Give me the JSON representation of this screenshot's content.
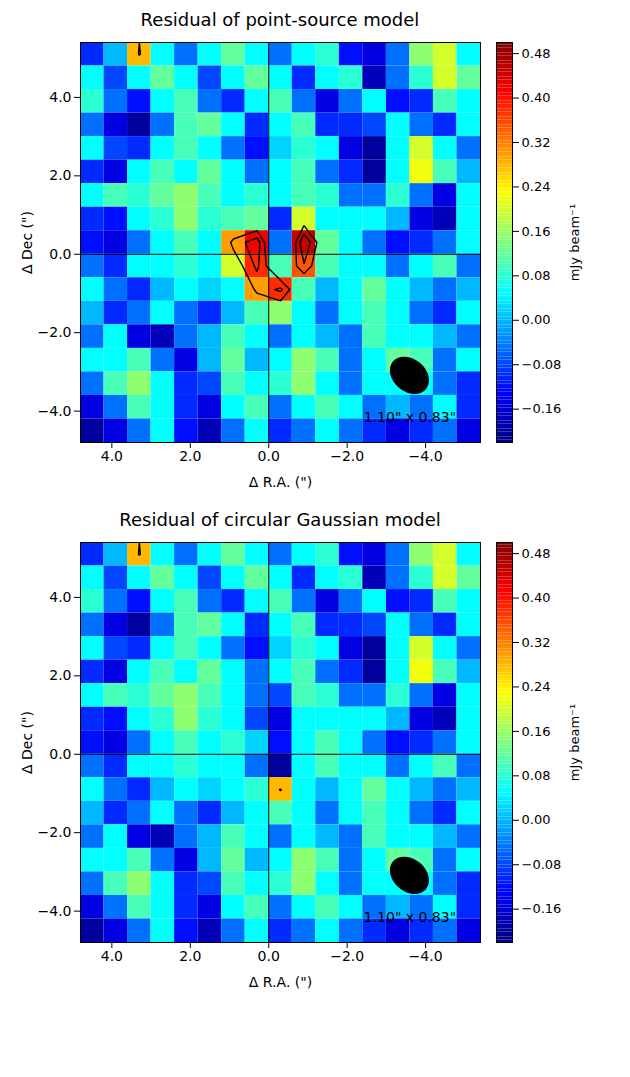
{
  "chart_data": [
    {
      "type": "heatmap",
      "title": "Residual of point-source model",
      "x_label": "Δ R.A. (\")",
      "y_label": "Δ Dec (\")",
      "xlim": [
        4.8,
        -5.4
      ],
      "ylim": [
        -4.8,
        5.4
      ],
      "xticks": [
        {
          "value": 4,
          "label": "4.0"
        },
        {
          "value": 2,
          "label": "2.0"
        },
        {
          "value": 0,
          "label": "0.0"
        },
        {
          "value": -2,
          "label": "−2.0"
        },
        {
          "value": -4,
          "label": "−4.0"
        }
      ],
      "yticks": [
        {
          "value": -4,
          "label": "−4.0"
        },
        {
          "value": -2,
          "label": "−2.0"
        },
        {
          "value": 0,
          "label": "0.0"
        },
        {
          "value": 2,
          "label": "2.0"
        },
        {
          "value": 4,
          "label": "4.0"
        }
      ],
      "x": [
        4.5,
        3.9,
        3.3,
        2.7,
        2.1,
        1.5,
        0.9,
        0.3,
        -0.3,
        -0.9,
        -1.5,
        -2.1,
        -2.7,
        -3.3,
        -3.9,
        -4.5,
        -5.1
      ],
      "y": [
        5.1,
        4.5,
        3.9,
        3.3,
        2.7,
        2.1,
        1.5,
        0.9,
        0.3,
        -0.3,
        -0.9,
        -1.5,
        -2.1,
        -2.7,
        -3.3,
        -3.9,
        -4.5
      ],
      "values": [
        [
          -0.1,
          0,
          0.28,
          0.05,
          -0.05,
          0.05,
          0.12,
          0.05,
          -0.05,
          0.05,
          0.08,
          -0.12,
          -0.15,
          -0.05,
          0.15,
          0.2,
          0.05
        ],
        [
          0.05,
          -0.08,
          0.05,
          0.12,
          0.05,
          -0.08,
          0.05,
          0.12,
          0.05,
          -0.1,
          0.05,
          0.08,
          -0.18,
          -0.05,
          0.08,
          0.2,
          0.12
        ],
        [
          0.08,
          -0.05,
          -0.12,
          0.05,
          0.1,
          -0.05,
          -0.1,
          0.05,
          0.1,
          -0.05,
          -0.15,
          -0.05,
          0.05,
          -0.12,
          -0.1,
          0.1,
          0.05
        ],
        [
          -0.05,
          -0.15,
          -0.2,
          -0.05,
          0.1,
          0.12,
          0.05,
          -0.1,
          0.05,
          0.1,
          -0.1,
          -0.1,
          -0.08,
          0.05,
          -0.05,
          -0.1,
          0.05
        ],
        [
          0.05,
          -0.08,
          -0.1,
          0.05,
          0.1,
          0.05,
          -0.05,
          -0.12,
          0.02,
          0.08,
          0.05,
          -0.15,
          -0.2,
          0.05,
          0.2,
          0.05,
          -0.05
        ],
        [
          -0.1,
          -0.15,
          0.05,
          0.1,
          0.05,
          0.12,
          0.05,
          -0.05,
          0.05,
          0.1,
          -0.05,
          -0.1,
          -0.2,
          0.05,
          0.22,
          0.1,
          0
        ],
        [
          0.05,
          0.1,
          0.08,
          0.12,
          0.15,
          0.1,
          0.05,
          0.08,
          0.05,
          0.1,
          0.08,
          -0.05,
          -0.05,
          0.08,
          -0.05,
          -0.15,
          0.05
        ],
        [
          -0.1,
          -0.12,
          0.05,
          0.08,
          0.15,
          0.08,
          0.1,
          0.12,
          -0.1,
          0.2,
          0.05,
          0.05,
          0.05,
          0,
          -0.15,
          -0.18,
          0.05
        ],
        [
          -0.12,
          -0.15,
          -0.05,
          0.05,
          0.1,
          0.05,
          0.3,
          0.42,
          -0.05,
          0.45,
          0.12,
          0.05,
          -0.05,
          -0.12,
          -0.1,
          -0.05,
          0.05
        ],
        [
          -0.05,
          -0.1,
          0.05,
          0.05,
          0.08,
          0.05,
          0.2,
          0.38,
          0.1,
          0.35,
          0.1,
          0.05,
          0.05,
          -0.05,
          0.05,
          0.1,
          -0.05
        ],
        [
          0.05,
          -0.05,
          -0.1,
          0,
          0.05,
          0.02,
          0.05,
          0.3,
          0.38,
          0.1,
          0,
          0.05,
          0.12,
          0.05,
          0,
          -0.05,
          0
        ],
        [
          0,
          -0.1,
          -0.05,
          0.05,
          -0.05,
          -0.1,
          0,
          0.1,
          0.15,
          0.05,
          -0.05,
          0.05,
          0.1,
          0.05,
          -0.05,
          -0.1,
          0.05
        ],
        [
          -0.05,
          0.05,
          -0.15,
          -0.18,
          -0.05,
          0,
          0.1,
          0.05,
          -0.05,
          0.05,
          0,
          -0.05,
          0.1,
          0.05,
          0.05,
          0,
          -0.05
        ],
        [
          0.05,
          0.05,
          0.1,
          -0.05,
          -0.15,
          0,
          0.12,
          0,
          0.05,
          0.15,
          0.1,
          -0.05,
          0.05,
          0.12,
          0.1,
          -0.05,
          0.05
        ],
        [
          -0.05,
          0.1,
          0.15,
          0.05,
          -0.1,
          -0.08,
          0.1,
          0.05,
          0.08,
          0.15,
          0.05,
          -0.05,
          0.05,
          0.05,
          0.05,
          -0.05,
          -0.1
        ],
        [
          -0.15,
          -0.05,
          0.1,
          0.05,
          -0.1,
          -0.15,
          0.05,
          0.1,
          -0.05,
          0.05,
          0.1,
          0.05,
          -0.05,
          0,
          -0.05,
          0.05,
          -0.1
        ],
        [
          -0.2,
          -0.15,
          -0.05,
          0.05,
          -0.12,
          -0.18,
          -0.05,
          0.05,
          -0.1,
          -0.05,
          0.05,
          -0.05,
          -0.1,
          -0.15,
          -0.1,
          -0.05,
          -0.15
        ]
      ],
      "contour_levels": [
        0.27,
        0.36,
        0.45
      ],
      "colorbar": {
        "label": "mJy beam⁻¹",
        "range": [
          -0.22,
          0.5
        ],
        "ticks": [
          {
            "value": -0.16,
            "label": "−0.16"
          },
          {
            "value": -0.08,
            "label": "−0.08"
          },
          {
            "value": 0,
            "label": "0.00"
          },
          0.08,
          0.16,
          0.24,
          0.32,
          {
            "value": 0.4,
            "label": "0.40"
          },
          0.48
        ]
      },
      "beam": {
        "label": "1.10\" x 0.83\"",
        "major": 1.1,
        "minor": 0.83,
        "angle": 40,
        "x": -3.6,
        "y": -3.1
      },
      "crosshair": {
        "x": 0,
        "y": 0
      }
    },
    {
      "type": "heatmap",
      "title": "Residual of circular Gaussian model",
      "x_label": "Δ R.A. (\")",
      "y_label": "Δ Dec (\")",
      "xlim": [
        4.8,
        -5.4
      ],
      "ylim": [
        -4.8,
        5.4
      ],
      "xticks": [
        {
          "value": 4,
          "label": "4.0"
        },
        {
          "value": 2,
          "label": "2.0"
        },
        {
          "value": 0,
          "label": "0.0"
        },
        {
          "value": -2,
          "label": "−2.0"
        },
        {
          "value": -4,
          "label": "−4.0"
        }
      ],
      "yticks": [
        {
          "value": -4,
          "label": "−4.0"
        },
        {
          "value": -2,
          "label": "−2.0"
        },
        {
          "value": 0,
          "label": "0.0"
        },
        {
          "value": 2,
          "label": "2.0"
        },
        {
          "value": 4,
          "label": "4.0"
        }
      ],
      "x": [
        4.5,
        3.9,
        3.3,
        2.7,
        2.1,
        1.5,
        0.9,
        0.3,
        -0.3,
        -0.9,
        -1.5,
        -2.1,
        -2.7,
        -3.3,
        -3.9,
        -4.5,
        -5.1
      ],
      "y": [
        5.1,
        4.5,
        3.9,
        3.3,
        2.7,
        2.1,
        1.5,
        0.9,
        0.3,
        -0.3,
        -0.9,
        -1.5,
        -2.1,
        -2.7,
        -3.3,
        -3.9,
        -4.5
      ],
      "values": [
        [
          -0.1,
          0,
          0.28,
          0.05,
          -0.05,
          0.05,
          0.12,
          0.05,
          -0.05,
          0.05,
          0.08,
          -0.12,
          -0.15,
          -0.05,
          0.15,
          0.2,
          0.05
        ],
        [
          0.05,
          -0.08,
          0.05,
          0.12,
          0.05,
          -0.08,
          0.05,
          0.12,
          0.05,
          -0.1,
          0.05,
          0.08,
          -0.18,
          -0.05,
          0.08,
          0.2,
          0.12
        ],
        [
          0.08,
          -0.05,
          -0.12,
          0.05,
          0.1,
          -0.05,
          -0.1,
          0.05,
          0.1,
          -0.05,
          -0.15,
          -0.05,
          0.05,
          -0.12,
          -0.1,
          0.1,
          0.05
        ],
        [
          -0.05,
          -0.15,
          -0.2,
          -0.05,
          0.1,
          0.12,
          0.05,
          -0.1,
          0.05,
          0.1,
          -0.1,
          -0.1,
          -0.08,
          0.05,
          -0.05,
          -0.1,
          0.05
        ],
        [
          0.05,
          -0.08,
          -0.1,
          0.05,
          0.1,
          0.05,
          -0.05,
          -0.12,
          0.02,
          0.08,
          0.05,
          -0.15,
          -0.2,
          0.05,
          0.2,
          0.05,
          -0.05
        ],
        [
          -0.1,
          -0.15,
          0.05,
          0.1,
          0.05,
          0.12,
          0.05,
          -0.05,
          0.05,
          0.1,
          -0.05,
          -0.1,
          -0.2,
          0.05,
          0.22,
          0.1,
          0
        ],
        [
          0.05,
          0.1,
          0.08,
          0.12,
          0.15,
          0.1,
          0.05,
          -0.05,
          -0.08,
          0.1,
          0.08,
          -0.05,
          -0.05,
          0.08,
          -0.05,
          -0.15,
          0.05
        ],
        [
          -0.1,
          -0.12,
          0.05,
          0.08,
          0.15,
          0.08,
          0.05,
          -0.08,
          -0.15,
          0.05,
          0.05,
          0.05,
          0.05,
          0,
          -0.15,
          -0.18,
          0.05
        ],
        [
          -0.12,
          -0.15,
          -0.05,
          0.05,
          0.1,
          0.05,
          0.08,
          0.02,
          -0.12,
          0.05,
          0.1,
          0.05,
          -0.05,
          -0.12,
          -0.1,
          -0.05,
          0.05
        ],
        [
          -0.05,
          -0.1,
          0.05,
          0.05,
          0.08,
          0.05,
          0.05,
          -0.05,
          -0.2,
          0.05,
          0.1,
          0.05,
          0.05,
          -0.05,
          0.05,
          0.1,
          -0.05
        ],
        [
          0.05,
          -0.05,
          -0.1,
          0,
          0.05,
          0.02,
          0.05,
          0.08,
          0.28,
          0.05,
          0,
          0.05,
          0.12,
          0.05,
          0,
          -0.05,
          0
        ],
        [
          0,
          -0.1,
          -0.05,
          0.05,
          -0.05,
          -0.1,
          0,
          0.05,
          0.1,
          0.05,
          -0.05,
          0.05,
          0.1,
          0.05,
          -0.05,
          -0.1,
          0.05
        ],
        [
          -0.05,
          0.05,
          -0.15,
          -0.18,
          -0.05,
          0,
          0.1,
          0.05,
          -0.05,
          0.05,
          0,
          -0.05,
          0.1,
          0.05,
          0.05,
          0,
          -0.05
        ],
        [
          0.05,
          0.05,
          0.1,
          -0.05,
          -0.15,
          0,
          0.12,
          0,
          0.05,
          0.15,
          0.1,
          -0.05,
          0.05,
          0.12,
          0.1,
          -0.05,
          0.05
        ],
        [
          -0.05,
          0.1,
          0.15,
          0.05,
          -0.1,
          -0.08,
          0.1,
          0.05,
          0.08,
          0.15,
          0.05,
          -0.05,
          0.05,
          0.05,
          0.05,
          -0.05,
          -0.1
        ],
        [
          -0.15,
          -0.05,
          0.1,
          0.05,
          -0.1,
          -0.15,
          0.05,
          0.1,
          -0.05,
          0.05,
          0.1,
          0.05,
          -0.05,
          0,
          -0.05,
          0.05,
          -0.1
        ],
        [
          -0.2,
          -0.15,
          -0.05,
          0.05,
          -0.12,
          -0.18,
          -0.05,
          0.05,
          -0.1,
          -0.05,
          0.05,
          -0.05,
          -0.1,
          -0.15,
          -0.1,
          -0.05,
          -0.15
        ]
      ],
      "contour_levels": [
        0.27,
        0.36,
        0.45
      ],
      "colorbar": {
        "label": "mJy beam⁻¹",
        "range": [
          -0.22,
          0.5
        ],
        "ticks": [
          {
            "value": -0.16,
            "label": "−0.16"
          },
          {
            "value": -0.08,
            "label": "−0.08"
          },
          {
            "value": 0,
            "label": "0.00"
          },
          0.08,
          0.16,
          0.24,
          0.32,
          {
            "value": 0.4,
            "label": "0.40"
          },
          0.48
        ]
      },
      "beam": {
        "label": "1.10\" x 0.83\"",
        "major": 1.1,
        "minor": 0.83,
        "angle": 40,
        "x": -3.6,
        "y": -3.1
      },
      "crosshair": {
        "x": 0,
        "y": 0
      }
    }
  ]
}
